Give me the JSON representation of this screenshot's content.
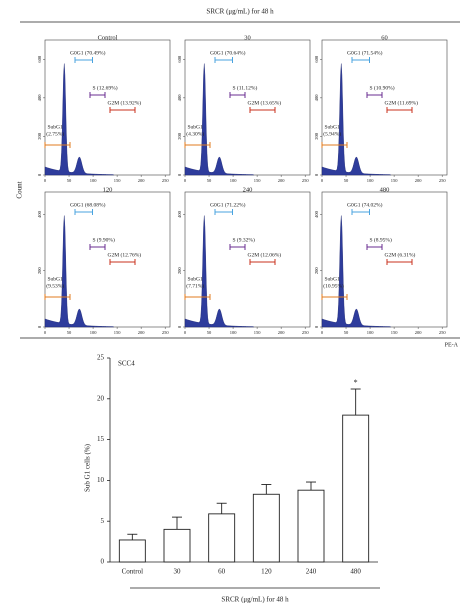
{
  "chart_data": [
    {
      "type": "flow-panels",
      "title": "SRCR (μg/mL) for 48 h",
      "ylabel": "Count",
      "xlabel": "PE-A",
      "xticks": [
        0,
        50,
        100,
        150,
        200,
        250
      ],
      "xlim": [
        0,
        260
      ],
      "panels": [
        {
          "name": "Control",
          "ylim": [
            0,
            700
          ],
          "yticks": [
            0,
            200,
            400,
            600
          ],
          "g0g1": "G0G1 (70.49%)",
          "s": "S (12.69%)",
          "g2m": "G2M (13.92%)",
          "subg1": "SubG1",
          "subg1_value": "(2.75%)"
        },
        {
          "name": "30",
          "ylim": [
            0,
            700
          ],
          "yticks": [
            0,
            200,
            400,
            600
          ],
          "g0g1": "G0G1 (70.64%)",
          "s": "S (11.12%)",
          "g2m": "G2M (13.65%)",
          "subg1": "SubG1",
          "subg1_value": "(4.30%)"
        },
        {
          "name": "60",
          "ylim": [
            0,
            700
          ],
          "yticks": [
            0,
            200,
            400,
            600
          ],
          "g0g1": "G0G1 (71.54%)",
          "s": "S (10.90%)",
          "g2m": "G2M (11.69%)",
          "subg1": "SubG1",
          "subg1_value": "(5.94%)"
        },
        {
          "name": "120",
          "ylim": [
            0,
            480
          ],
          "yticks": [
            0,
            200,
            400
          ],
          "g0g1": "G0G1 (68.08%)",
          "s": "S (9.90%)",
          "g2m": "G2M (12.76%)",
          "subg1": "SubG1",
          "subg1_value": "(9.53%)"
        },
        {
          "name": "240",
          "ylim": [
            0,
            480
          ],
          "yticks": [
            0,
            200,
            400
          ],
          "g0g1": "G0G1 (71.22%)",
          "s": "S (9.32%)",
          "g2m": "G2M (12.06%)",
          "subg1": "SubG1",
          "subg1_value": "(7.71%)"
        },
        {
          "name": "480",
          "ylim": [
            0,
            480
          ],
          "yticks": [
            0,
            200,
            400
          ],
          "g0g1": "G0G1 (74.02%)",
          "s": "S (8.95%)",
          "g2m": "G2M (6.31%)",
          "subg1": "SubG1",
          "subg1_value": "(10.95%)"
        }
      ]
    },
    {
      "type": "bar",
      "title": "SCC4",
      "xlabel": "SRCR (μg/mL) for 48 h",
      "ylabel": "Sub G1 cells (%)",
      "categories": [
        "Control",
        "30",
        "60",
        "120",
        "240",
        "480"
      ],
      "values": [
        2.7,
        4.0,
        5.9,
        8.3,
        8.8,
        18.0
      ],
      "errors": [
        0.7,
        1.5,
        1.3,
        1.2,
        1.0,
        3.2
      ],
      "annotation": "*",
      "color": "#ffffff",
      "ylim": [
        0,
        25
      ],
      "yticks": [
        0,
        5,
        10,
        15,
        20,
        25
      ]
    }
  ]
}
